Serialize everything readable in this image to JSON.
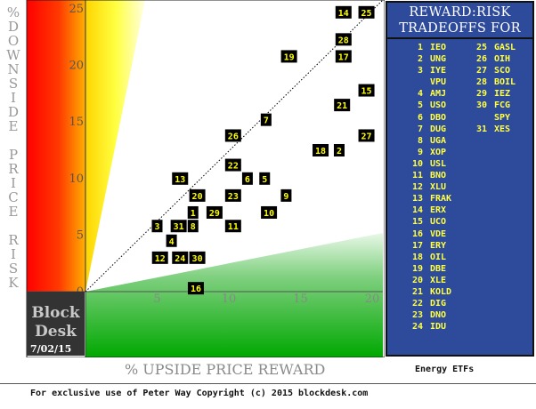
{
  "chart_data": {
    "type": "scatter",
    "title": "REWARD:RISK TRADEOFFS FOR",
    "xlabel": "% UPSIDE PRICE REWARD",
    "ylabel": "% DOWNSIDE PRICE RISK",
    "xlim": [
      -5,
      20
    ],
    "ylim": [
      -5,
      25
    ],
    "xticks": [
      "5",
      "10",
      "15",
      "20"
    ],
    "yticks": [
      "0",
      "5",
      "10",
      "15",
      "20",
      "25"
    ],
    "points": [
      {
        "label": "1",
        "x": 7.5,
        "y": 7.0
      },
      {
        "label": "2",
        "x": 17.7,
        "y": 12.5
      },
      {
        "label": "3",
        "x": 5.0,
        "y": 5.8
      },
      {
        "label": "4",
        "x": 6.0,
        "y": 4.5
      },
      {
        "label": "5",
        "x": 12.5,
        "y": 10.0
      },
      {
        "label": "6",
        "x": 11.3,
        "y": 10.0
      },
      {
        "label": "7",
        "x": 12.6,
        "y": 15.2
      },
      {
        "label": "8",
        "x": 7.5,
        "y": 5.8
      },
      {
        "label": "9",
        "x": 14.0,
        "y": 8.5
      },
      {
        "label": "10",
        "x": 12.8,
        "y": 7.0
      },
      {
        "label": "11",
        "x": 10.3,
        "y": 5.8
      },
      {
        "label": "12",
        "x": 5.2,
        "y": 3.0
      },
      {
        "label": "13",
        "x": 6.6,
        "y": 10.0
      },
      {
        "label": "14",
        "x": 18.0,
        "y": 24.7
      },
      {
        "label": "15",
        "x": 19.6,
        "y": 17.8
      },
      {
        "label": "16",
        "x": 7.7,
        "y": 0.3
      },
      {
        "label": "17",
        "x": 18.0,
        "y": 20.8
      },
      {
        "label": "18",
        "x": 16.4,
        "y": 12.5
      },
      {
        "label": "19",
        "x": 14.2,
        "y": 20.8
      },
      {
        "label": "20",
        "x": 7.8,
        "y": 8.5
      },
      {
        "label": "21",
        "x": 17.9,
        "y": 16.5
      },
      {
        "label": "22",
        "x": 10.3,
        "y": 11.2
      },
      {
        "label": "23",
        "x": 10.3,
        "y": 8.5
      },
      {
        "label": "24",
        "x": 6.6,
        "y": 3.0
      },
      {
        "label": "25",
        "x": 19.6,
        "y": 24.7
      },
      {
        "label": "26",
        "x": 10.3,
        "y": 13.8
      },
      {
        "label": "27",
        "x": 19.6,
        "y": 13.8
      },
      {
        "label": "28",
        "x": 18.0,
        "y": 22.3
      },
      {
        "label": "29",
        "x": 9.0,
        "y": 7.0
      },
      {
        "label": "30",
        "x": 7.8,
        "y": 3.0
      },
      {
        "label": "31",
        "x": 6.5,
        "y": 5.8
      }
    ],
    "legend": [
      {
        "num": "1",
        "tickers": [
          "IEO"
        ]
      },
      {
        "num": "2",
        "tickers": [
          "UNG"
        ]
      },
      {
        "num": "3",
        "tickers": [
          "IYE",
          "VPU"
        ]
      },
      {
        "num": "4",
        "tickers": [
          "AMJ"
        ]
      },
      {
        "num": "5",
        "tickers": [
          "USO"
        ]
      },
      {
        "num": "6",
        "tickers": [
          "DBO"
        ]
      },
      {
        "num": "7",
        "tickers": [
          "DUG"
        ]
      },
      {
        "num": "8",
        "tickers": [
          "UGA"
        ]
      },
      {
        "num": "9",
        "tickers": [
          "XOP"
        ]
      },
      {
        "num": "10",
        "tickers": [
          "USL"
        ]
      },
      {
        "num": "11",
        "tickers": [
          "BNO"
        ]
      },
      {
        "num": "12",
        "tickers": [
          "XLU"
        ]
      },
      {
        "num": "13",
        "tickers": [
          "FRAK"
        ]
      },
      {
        "num": "14",
        "tickers": [
          "ERX"
        ]
      },
      {
        "num": "15",
        "tickers": [
          "UCO"
        ]
      },
      {
        "num": "16",
        "tickers": [
          "VDE"
        ]
      },
      {
        "num": "17",
        "tickers": [
          "ERY"
        ]
      },
      {
        "num": "18",
        "tickers": [
          "OIL"
        ]
      },
      {
        "num": "19",
        "tickers": [
          "DBE"
        ]
      },
      {
        "num": "20",
        "tickers": [
          "XLE"
        ]
      },
      {
        "num": "21",
        "tickers": [
          "KOLD"
        ]
      },
      {
        "num": "22",
        "tickers": [
          "DIG"
        ]
      },
      {
        "num": "23",
        "tickers": [
          "DNO"
        ]
      },
      {
        "num": "24",
        "tickers": [
          "IDU"
        ]
      },
      {
        "num": "25",
        "tickers": [
          "GASL"
        ]
      },
      {
        "num": "26",
        "tickers": [
          "OIH"
        ]
      },
      {
        "num": "27",
        "tickers": [
          "SCO"
        ]
      },
      {
        "num": "28",
        "tickers": [
          "BOIL"
        ]
      },
      {
        "num": "29",
        "tickers": [
          "IEZ"
        ]
      },
      {
        "num": "30",
        "tickers": [
          "FCG",
          "SPY"
        ]
      },
      {
        "num": "31",
        "tickers": [
          "XES"
        ]
      }
    ],
    "grid": false,
    "colors": {
      "risk_zone": "#ff0000",
      "warning_zone": "#ffff00",
      "reward_zone": "#00aa00",
      "marker_bg": "#000000",
      "marker_text": "#ffff00",
      "panel_bg": "#2e4a9a"
    }
  },
  "labels": {
    "ylabel_chars": [
      "%",
      "D",
      "O",
      "W",
      "N",
      "S",
      "I",
      "D",
      "E",
      "",
      "P",
      "R",
      "I",
      "C",
      "E",
      "",
      "R",
      "I",
      "S",
      "K"
    ],
    "panel_title_line1": "REWARD:RISK",
    "panel_title_line2": "TRADEOFFS FOR",
    "subtitle": "Energy ETFs",
    "brand_line1": "Block",
    "brand_line2": "Desk",
    "date": "7/02/15",
    "footer": "For exclusive use of Peter Way Copyright (c) 2015 blockdesk.com"
  }
}
